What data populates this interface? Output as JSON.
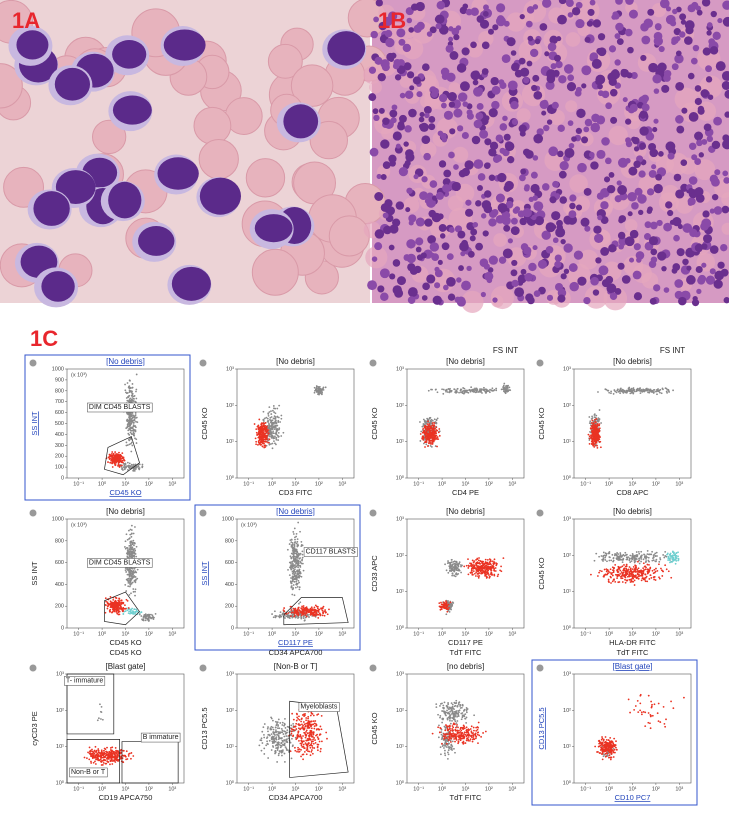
{
  "panels": {
    "a": "1A",
    "b": "1B",
    "c": "1C"
  },
  "plots": [
    {
      "title": "[No debris]",
      "x_label": "CD45 KO",
      "y_label": "SS INT",
      "y_unit": "(x 10³)",
      "highlight": true,
      "gates": [
        "DIM CD45 BLASTS"
      ],
      "x_ticks": [
        "10⁻¹",
        "10⁰",
        "10¹",
        "10²",
        "10³"
      ],
      "y_ticks": [
        "0",
        "100",
        "200",
        "300",
        "400",
        "500",
        "600",
        "700",
        "800",
        "900",
        "1000"
      ]
    },
    {
      "title": "[No debris]",
      "x_label": "CD3 FITC",
      "y_label": "CD45 KO",
      "x_ticks": [
        "10⁻¹",
        "10⁰",
        "10¹",
        "10²",
        "10³"
      ],
      "y_ticks": [
        "10⁰",
        "10¹",
        "10²",
        "10³"
      ]
    },
    {
      "top_label": "FS INT",
      "title": "[No debris]",
      "x_label": "CD4 PE",
      "y_label": "CD45 KO",
      "x_ticks": [
        "10⁻¹",
        "10⁰",
        "10¹",
        "10²",
        "10³"
      ],
      "y_ticks": [
        "10⁰",
        "10¹",
        "10²",
        "10³"
      ]
    },
    {
      "top_label": "FS INT",
      "title": "[No debris]",
      "x_label": "CD8 APC",
      "y_label": "CD45 KO",
      "x_ticks": [
        "10⁻¹",
        "10⁰",
        "10¹",
        "10²",
        "10³"
      ],
      "y_ticks": [
        "10⁰",
        "10¹",
        "10²",
        "10³"
      ]
    },
    {
      "title": "[No debris]",
      "x_label": "CD45 KO",
      "y_label": "SS INT",
      "y_unit": "(x 10³)",
      "under_label": "CD45 KO",
      "gates": [
        "DIM CD45 BLASTS"
      ],
      "x_ticks": [
        "10⁻¹",
        "10⁰",
        "10¹",
        "10²",
        "10³"
      ],
      "y_ticks": [
        "0",
        "200",
        "400",
        "600",
        "800",
        "1000"
      ]
    },
    {
      "title": "[No debris]",
      "x_label": "CD117 PE",
      "y_label": "SS INT",
      "y_unit": "(x 10³)",
      "under_label": "CD34 APCA700",
      "highlight": true,
      "gates": [
        "CD117 BLASTS"
      ],
      "x_ticks": [
        "10⁻¹",
        "10⁰",
        "10¹",
        "10²",
        "10³"
      ],
      "y_ticks": [
        "0",
        "200",
        "400",
        "600",
        "800",
        "1000"
      ]
    },
    {
      "title": "[No debris]",
      "x_label": "CD117 PE",
      "y_label": "CD33 APC",
      "under_label": "TdT FITC",
      "x_ticks": [
        "10⁻¹",
        "10⁰",
        "10¹",
        "10²",
        "10³"
      ],
      "y_ticks": [
        "10⁰",
        "10¹",
        "10²",
        "10³"
      ]
    },
    {
      "title": "[No debris]",
      "x_label": "HLA-DR FITC",
      "y_label": "CD45 KO",
      "under_label": "TdT FITC",
      "x_ticks": [
        "10⁻¹",
        "10⁰",
        "10¹",
        "10²",
        "10³"
      ],
      "y_ticks": [
        "10⁰",
        "10¹",
        "10²",
        "10³"
      ]
    },
    {
      "title": "[Blast gate]",
      "x_label": "CD19 APCA750",
      "y_label": "cyCD3 PE",
      "gates": [
        "T- immature",
        "B immature",
        "Non-B or T"
      ],
      "x_ticks": [
        "10⁻¹",
        "10⁰",
        "10¹",
        "10²",
        "10³"
      ],
      "y_ticks": [
        "10⁰",
        "10¹",
        "10²",
        "10³"
      ]
    },
    {
      "title": "[Non-B or T]",
      "x_label": "CD34 APCA700",
      "y_label": "CD13 PC5.5",
      "gates": [
        "Myeloblasts"
      ],
      "x_ticks": [
        "10⁻¹",
        "10⁰",
        "10¹",
        "10²",
        "10³"
      ],
      "y_ticks": [
        "10⁰",
        "10¹",
        "10²",
        "10³"
      ]
    },
    {
      "title": "[no debris]",
      "x_label": "TdT FITC",
      "y_label": "CD45 KO",
      "x_ticks": [
        "10⁻¹",
        "10⁰",
        "10¹",
        "10²",
        "10³"
      ],
      "y_ticks": [
        "10⁰",
        "10¹",
        "10²",
        "10³"
      ]
    },
    {
      "title": "[Blast gate]",
      "x_label": "CD10 PC7",
      "y_label": "CD13 PC5.5",
      "highlight": true,
      "x_ticks": [
        "10⁻¹",
        "10⁰",
        "10¹",
        "10²",
        "10³"
      ],
      "y_ticks": [
        "10⁰",
        "10¹",
        "10²",
        "10³"
      ]
    }
  ]
}
